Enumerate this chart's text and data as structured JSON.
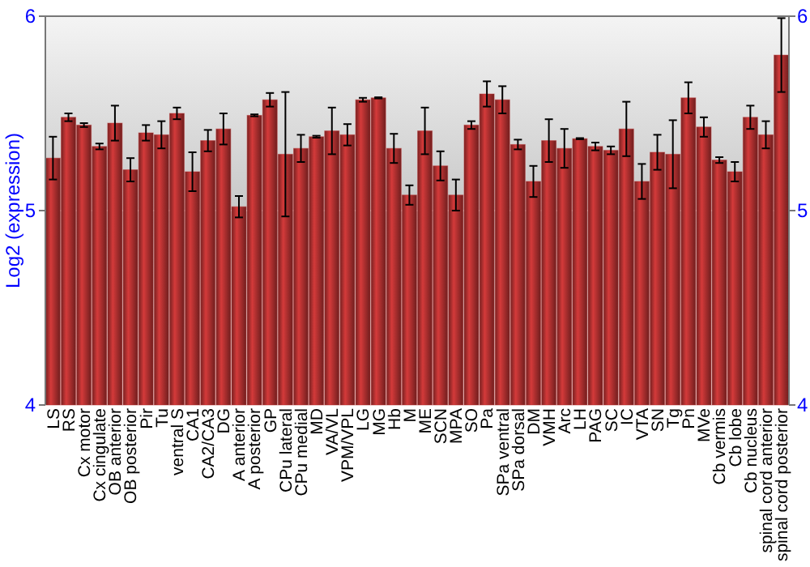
{
  "chart_data": {
    "type": "bar",
    "ylabel": "Log2 (expression)",
    "categories": [
      "LS",
      "RS",
      "Cx motor",
      "Cx cingulate",
      "OB anterior",
      "OB posterior",
      "Pir",
      "Tu",
      "ventral S",
      "CA1",
      "CA2/CA3",
      "DG",
      "A anterior",
      "A posterior",
      "GP",
      "CPu lateral",
      "CPu medial",
      "MD",
      "VA/VL",
      "VPM/VPL",
      "LG",
      "MG",
      "Hb",
      "M",
      "ME",
      "SCN",
      "MPA",
      "SO",
      "Pa",
      "SPa ventral",
      "SPa dorsal",
      "DM",
      "VMH",
      "Arc",
      "LH",
      "PAG",
      "SC",
      "IC",
      "VTA",
      "SN",
      "Tg",
      "Pn",
      "MVe",
      "Cb vermis",
      "Cb lobe",
      "Cb nucleus",
      "spinal cord anterior",
      "spinal cord posterior"
    ],
    "values": [
      5.27,
      5.48,
      5.44,
      5.33,
      5.45,
      5.21,
      5.4,
      5.39,
      5.5,
      5.2,
      5.36,
      5.42,
      5.02,
      5.49,
      5.57,
      5.29,
      5.32,
      5.38,
      5.41,
      5.39,
      5.57,
      5.58,
      5.32,
      5.08,
      5.41,
      5.23,
      5.08,
      5.44,
      5.6,
      5.57,
      5.34,
      5.15,
      5.36,
      5.32,
      5.37,
      5.33,
      5.31,
      5.42,
      5.15,
      5.3,
      5.29,
      5.58,
      5.43,
      5.26,
      5.2,
      5.48,
      5.39,
      5.8
    ],
    "errors": [
      0.11,
      0.02,
      0.01,
      0.015,
      0.09,
      0.06,
      0.04,
      0.07,
      0.03,
      0.1,
      0.055,
      0.08,
      0.055,
      0.005,
      0.035,
      0.32,
      0.07,
      0.005,
      0.12,
      0.055,
      0.01,
      0.003,
      0.075,
      0.05,
      0.12,
      0.075,
      0.08,
      0.02,
      0.065,
      0.07,
      0.025,
      0.08,
      0.11,
      0.1,
      0.003,
      0.02,
      0.02,
      0.14,
      0.09,
      0.09,
      0.175,
      0.08,
      0.05,
      0.015,
      0.05,
      0.06,
      0.07,
      0.19
    ],
    "color": "#b83232",
    "ylim": [
      4,
      6
    ],
    "yticks": [
      4,
      5,
      6
    ],
    "y2lim": [
      4,
      6
    ],
    "y2ticks": [
      4,
      5,
      6
    ],
    "grid": "y"
  }
}
